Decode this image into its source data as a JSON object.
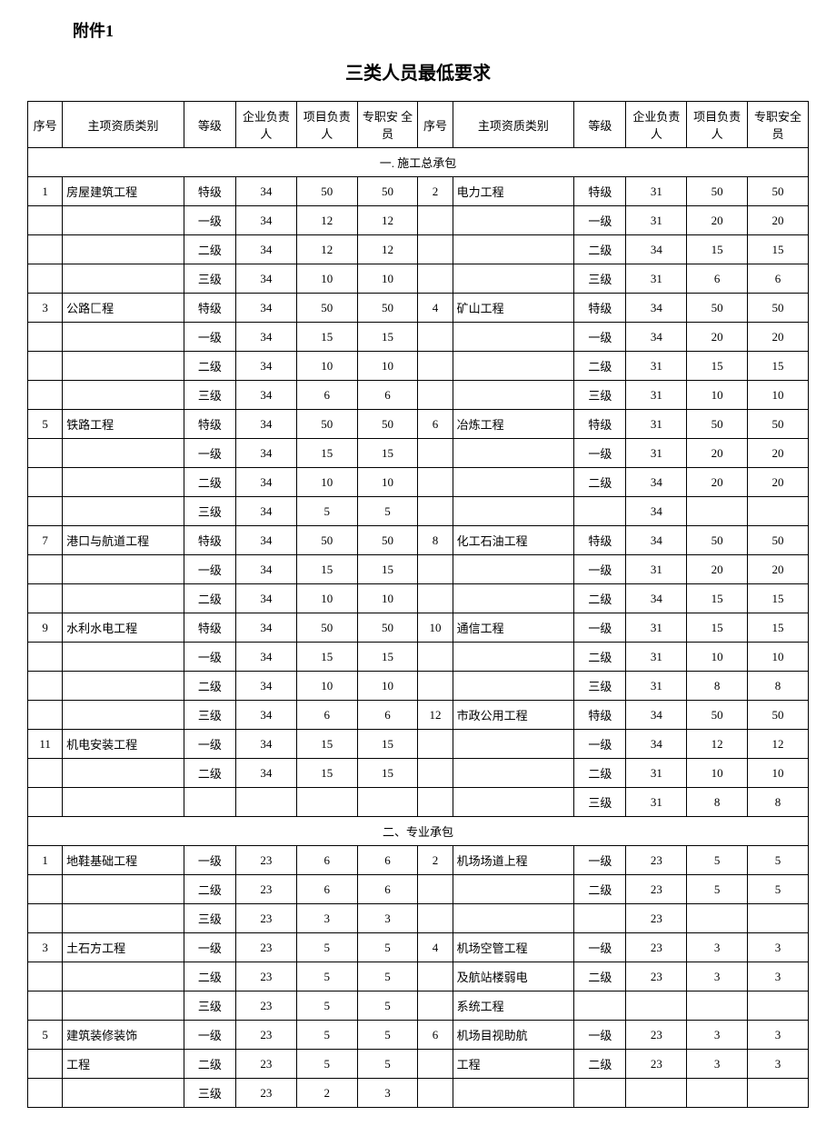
{
  "attachment_label": "附件1",
  "title": "三类人员最低要求",
  "headers": {
    "seq": "序号",
    "category": "主项资质类别",
    "level": "等级",
    "enterprise_head": "企业负责人",
    "project_head": "项目负责人",
    "safety_officer_a": "专职安 全员",
    "safety_officer_b": "专职安全员",
    "enterprise_head_b": "企业负责人",
    "project_head_b": "项目负责人"
  },
  "sections": [
    {
      "title": "一. 施工总承包"
    },
    {
      "title": "二、专业承包"
    }
  ],
  "rows_section1": [
    [
      "1",
      "房屋建筑工程",
      "特级",
      "34",
      "50",
      "50",
      "2",
      "电力工程",
      "特级",
      "31",
      "50",
      "50"
    ],
    [
      "",
      "",
      "一级",
      "34",
      "12",
      "12",
      "",
      "",
      "一级",
      "31",
      "20",
      "20"
    ],
    [
      "",
      "",
      "二级",
      "34",
      "12",
      "12",
      "",
      "",
      "二级",
      "34",
      "15",
      "15"
    ],
    [
      "",
      "",
      "三级",
      "34",
      "10",
      "10",
      "",
      "",
      "三级",
      "31",
      "6",
      "6"
    ],
    [
      "3",
      "公路匚程",
      "特级",
      "34",
      "50",
      "50",
      "4",
      "矿山工程",
      "特级",
      "34",
      "50",
      "50"
    ],
    [
      "",
      "",
      "一级",
      "34",
      "15",
      "15",
      "",
      "",
      "一级",
      "34",
      "20",
      "20"
    ],
    [
      "",
      "",
      "二级",
      "34",
      "10",
      "10",
      "",
      "",
      "二级",
      "31",
      "15",
      "15"
    ],
    [
      "",
      "",
      "三级",
      "34",
      "6",
      "6",
      "",
      "",
      "三级",
      "31",
      "10",
      "10"
    ],
    [
      "5",
      "铁路工程",
      "特级",
      "34",
      "50",
      "50",
      "6",
      "冶炼工程",
      "特级",
      "31",
      "50",
      "50"
    ],
    [
      "",
      "",
      "一级",
      "34",
      "15",
      "15",
      "",
      "",
      "一级",
      "31",
      "20",
      "20"
    ],
    [
      "",
      "",
      "二级",
      "34",
      "10",
      "10",
      "",
      "",
      "二级",
      "34",
      "20",
      "20"
    ],
    [
      "",
      "",
      "三级",
      "34",
      "5",
      "5",
      "",
      "",
      "",
      "34",
      "",
      ""
    ],
    [
      "7",
      "港口与航道工程",
      "特级",
      "34",
      "50",
      "50",
      "8",
      "化工石油工程",
      "特级",
      "34",
      "50",
      "50"
    ],
    [
      "",
      "",
      "一级",
      "34",
      "15",
      "15",
      "",
      "",
      "一级",
      "31",
      "20",
      "20"
    ],
    [
      "",
      "",
      "二级",
      "34",
      "10",
      "10",
      "",
      "",
      "二级",
      "34",
      "15",
      "15"
    ],
    [
      "9",
      "水利水电工程",
      "特级",
      "34",
      "50",
      "50",
      "10",
      "通信工程",
      "一级",
      "31",
      "15",
      "15"
    ],
    [
      "",
      "",
      "一级",
      "34",
      "15",
      "15",
      "",
      "",
      "二级",
      "31",
      "10",
      "10"
    ],
    [
      "",
      "",
      "二级",
      "34",
      "10",
      "10",
      "",
      "",
      "三级",
      "31",
      "8",
      "8"
    ],
    [
      "",
      "",
      "三级",
      "34",
      "6",
      "6",
      "12",
      "市政公用工程",
      "特级",
      "34",
      "50",
      "50"
    ],
    [
      "11",
      "机电安装工程",
      "一级",
      "34",
      "15",
      "15",
      "",
      "",
      "一级",
      "34",
      "12",
      "12"
    ],
    [
      "",
      "",
      "二级",
      "34",
      "15",
      "15",
      "",
      "",
      "二级",
      "31",
      "10",
      "10"
    ],
    [
      "",
      "",
      "",
      "",
      "",
      "",
      "",
      "",
      "三级",
      "31",
      "8",
      "8"
    ]
  ],
  "rows_section2": [
    [
      "1",
      "地鞋基础工程",
      "一级",
      "23",
      "6",
      "6",
      "2",
      "机场场道上程",
      "一级",
      "23",
      "5",
      "5"
    ],
    [
      "",
      "",
      "二级",
      "23",
      "6",
      "6",
      "",
      "",
      "二级",
      "23",
      "5",
      "5"
    ],
    [
      "",
      "",
      "三级",
      "23",
      "3",
      "3",
      "",
      "",
      "",
      "23",
      "",
      ""
    ],
    [
      "3",
      "土石方工程",
      "一级",
      "23",
      "5",
      "5",
      "4",
      "机场空管工程",
      "一级",
      "23",
      "3",
      "3"
    ],
    [
      "",
      "",
      "二级",
      "23",
      "5",
      "5",
      "",
      "及航站楼弱电",
      "二级",
      "23",
      "3",
      "3"
    ],
    [
      "",
      "",
      "三级",
      "23",
      "5",
      "5",
      "",
      "系统工程",
      "",
      "",
      "",
      ""
    ],
    [
      "5",
      "建筑装修装饰",
      "一级",
      "23",
      "5",
      "5",
      "6",
      "机场目视助航",
      "一级",
      "23",
      "3",
      "3"
    ],
    [
      "",
      "工程",
      "二级",
      "23",
      "5",
      "5",
      "",
      "工程",
      "二级",
      "23",
      "3",
      "3"
    ],
    [
      "",
      "",
      "三级",
      "23",
      "2",
      "3",
      "",
      "",
      "",
      "",
      "",
      ""
    ]
  ],
  "style": {
    "font_family": "SimSun",
    "base_fontsize": 14,
    "title_fontsize": 20,
    "attachment_fontsize": 18,
    "cell_fontsize": 13,
    "border_color": "#000000",
    "background_color": "#ffffff",
    "text_color": "#000000"
  }
}
